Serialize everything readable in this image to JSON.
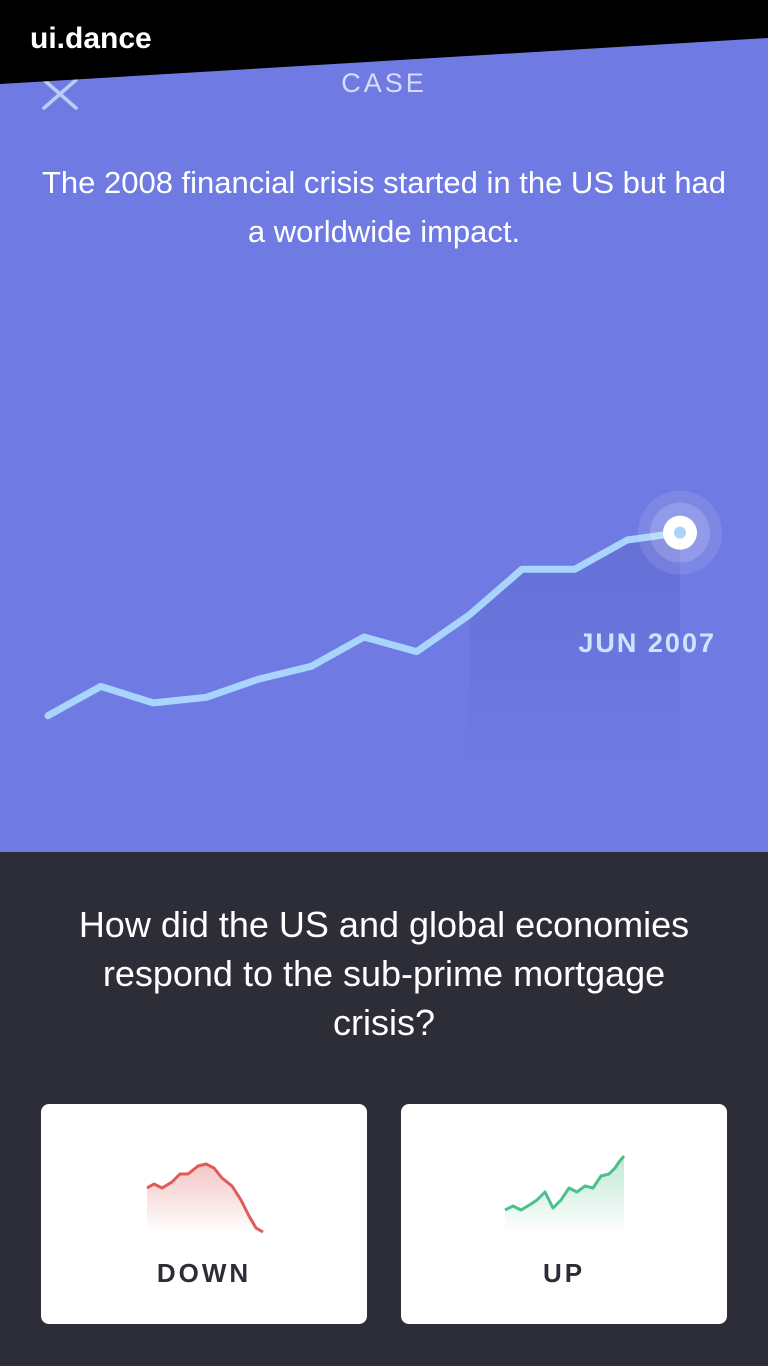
{
  "watermark": "ui.dance",
  "header": {
    "title": "CASE",
    "close_icon": "close-icon"
  },
  "lead_text": "The 2008 financial crisis started in the US but had a worldwide impact.",
  "chart_data": {
    "type": "line",
    "series": [
      {
        "values": [
          0.04,
          0.2,
          0.11,
          0.14,
          0.24,
          0.31,
          0.47,
          0.39,
          0.59,
          0.84,
          0.84,
          1.0,
          1.04
        ]
      }
    ],
    "highlight_point": "JUN 2007",
    "line_color": "#a9d4fb",
    "marker_color": "#ffffff"
  },
  "question": "How did the US and global economies respond to the sub-prime mortgage crisis?",
  "options": [
    {
      "label": "DOWN",
      "trend": "down",
      "color": "#e05a5a"
    },
    {
      "label": "UP",
      "trend": "up",
      "color": "#4cbf8a"
    }
  ]
}
